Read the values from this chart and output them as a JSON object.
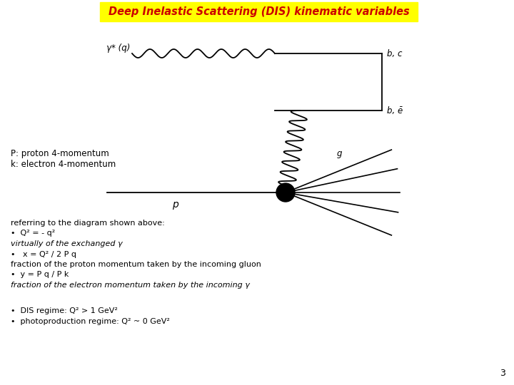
{
  "title": "Deep Inelastic Scattering (DIS) kinematic variables",
  "title_color": "#cc0000",
  "title_bg": "#ffff00",
  "background_color": "#ffffff",
  "text_color": "#000000",
  "label_P": "P: proton 4-momentum",
  "label_k": "k: electron 4-momentum",
  "ref_line": "referring to the diagram shown above:",
  "bullet1": "•  Q² = - q²",
  "virt_line": "virtually of the exchanged γ",
  "bullet2": "•   x = Q² / 2 P q",
  "frac1": "fraction of the proton momentum taken by the incoming gluon",
  "bullet3": "•  y = P q / P k",
  "frac2": "fraction of the electron momentum taken by the incoming γ",
  "dis1": "•  DIS regime: Q² > 1 GeV²",
  "dis2": "•  photoproduction regime: Q² ~ 0 GeV²",
  "page_num": "3",
  "gamma_label": "γ* (q)",
  "bc_label": "b, c",
  "bbarc_label": "b, ē",
  "g_label": "g",
  "P_label": "p"
}
